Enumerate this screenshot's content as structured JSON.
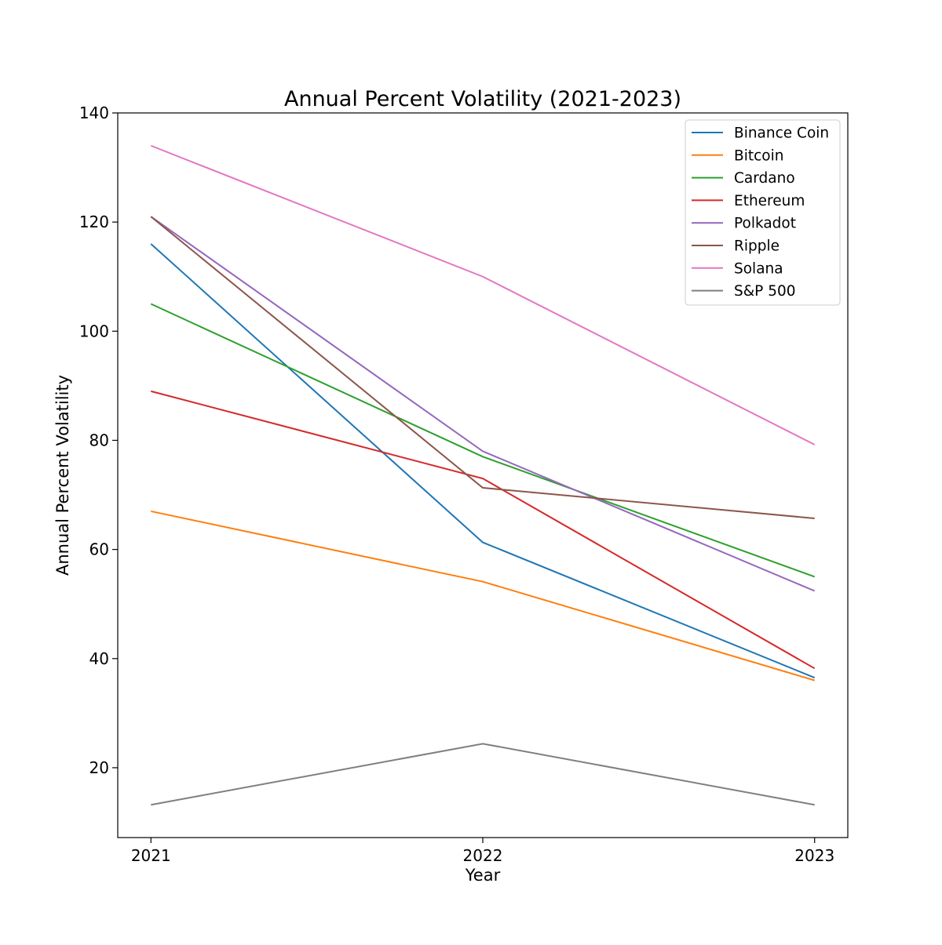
{
  "chart_data": {
    "type": "line",
    "title": "Annual Percent Volatility (2021-2023)",
    "xlabel": "Year",
    "ylabel": "Annual Percent Volatility",
    "x": [
      "2021",
      "2022",
      "2023"
    ],
    "x_values": [
      2021,
      2022,
      2023
    ],
    "xlim": [
      2020.9,
      2023.1
    ],
    "ylim": [
      7.2,
      140
    ],
    "yticks": [
      20,
      40,
      60,
      80,
      100,
      120,
      140
    ],
    "grid": false,
    "legend_position": "top-right",
    "series": [
      {
        "name": "Binance Coin",
        "color": "#1f77b4",
        "values": [
          116,
          61.3,
          36.5
        ]
      },
      {
        "name": "Bitcoin",
        "color": "#ff7f0e",
        "values": [
          67,
          54.1,
          36.0
        ]
      },
      {
        "name": "Cardano",
        "color": "#2ca02c",
        "values": [
          105,
          77,
          55
        ]
      },
      {
        "name": "Ethereum",
        "color": "#d62728",
        "values": [
          89,
          73,
          38.2
        ]
      },
      {
        "name": "Polkadot",
        "color": "#9467bd",
        "values": [
          121,
          78,
          52.4
        ]
      },
      {
        "name": "Ripple",
        "color": "#8c564b",
        "values": [
          121,
          71.3,
          65.7
        ]
      },
      {
        "name": "Solana",
        "color": "#e377c2",
        "values": [
          134,
          110,
          79.2
        ]
      },
      {
        "name": "S&P 500",
        "color": "#7f7f7f",
        "values": [
          13.2,
          24.4,
          13.2
        ]
      }
    ]
  }
}
